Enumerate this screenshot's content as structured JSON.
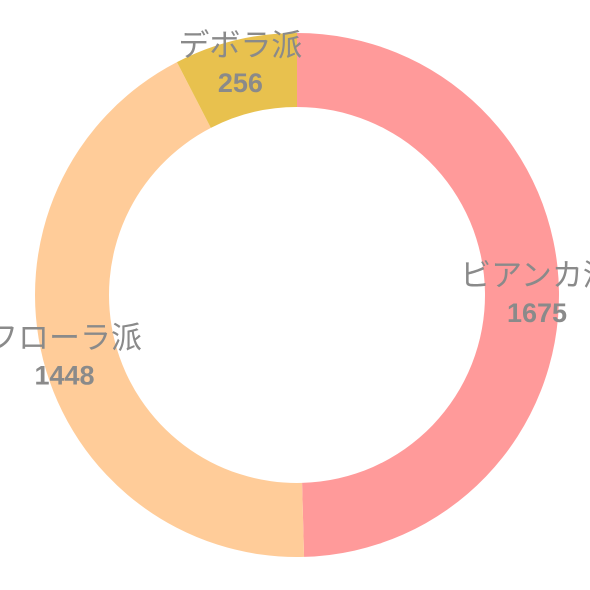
{
  "chart_data": {
    "type": "pie",
    "variant": "donut",
    "title": "",
    "slices": [
      {
        "label": "ビアンカ派",
        "value": 1675,
        "color": "#ff9a9a"
      },
      {
        "label": "フローラ派",
        "value": 1448,
        "color": "#ffcc99"
      },
      {
        "label": "デボラ派",
        "value": 256,
        "color": "#e8c14e"
      }
    ],
    "start_angle": "top",
    "direction": "clockwise",
    "legend": "none",
    "data_labels": "name and value on each slice"
  }
}
